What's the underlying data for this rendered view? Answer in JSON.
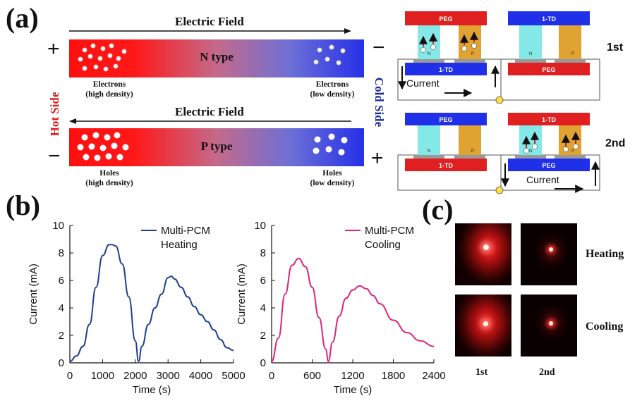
{
  "panels": {
    "a": "(a)",
    "b": "(b)",
    "c": "(c)"
  },
  "panel_a": {
    "n_bar": {
      "field_label": "Electric Field",
      "type_label": "N type",
      "left_sign": "+",
      "right_sign": "−",
      "left_carriers": [
        "Electrons",
        "(high density)"
      ],
      "right_carriers": [
        "Electrons",
        "(low density)"
      ]
    },
    "p_bar": {
      "field_label": "Electric Field",
      "type_label": "P type",
      "left_sign": "−",
      "right_sign": "+",
      "left_carriers": [
        "Holes",
        "(high density)"
      ],
      "right_carriers": [
        "Holes",
        "(low density)"
      ]
    },
    "hot_side": "Hot Side",
    "cold_side": "Cold Side",
    "colors": {
      "hot": "#ee1111",
      "cold": "#2233cc",
      "hot_text": "#e01a1a",
      "cold_text": "#1a2a9a"
    },
    "devices": {
      "rounds": [
        "1st",
        "2nd"
      ],
      "peg": "PEG",
      "td": "1-TD",
      "n": "N",
      "p": "P",
      "current": "Current",
      "electron_sign": "-",
      "hole_sign": "+"
    }
  },
  "chart_data": [
    {
      "type": "line",
      "title": "",
      "xlabel": "Time (s)",
      "ylabel": "Current (mA)",
      "xlim": [
        0,
        5000
      ],
      "ylim": [
        0,
        10
      ],
      "xticks": [
        0,
        1000,
        2000,
        3000,
        4000,
        5000
      ],
      "yticks": [
        0,
        2,
        4,
        6,
        8,
        10
      ],
      "legend": "top-right",
      "series": [
        {
          "name": "Multi-PCM Heating",
          "legend_lines": [
            "Multi-PCM",
            "Heating"
          ],
          "color": "#1f3f8f",
          "x": [
            0,
            200,
            400,
            600,
            800,
            1000,
            1200,
            1300,
            1400,
            1600,
            1800,
            2000,
            2100,
            2200,
            2400,
            2600,
            2800,
            3000,
            3100,
            3200,
            3400,
            3600,
            3800,
            4000,
            4200,
            4400,
            4600,
            4800,
            5000
          ],
          "y": [
            0.1,
            0.5,
            1.2,
            2.8,
            5.5,
            7.8,
            8.6,
            8.6,
            8.5,
            7.2,
            4.8,
            1.6,
            0.1,
            1.2,
            2.8,
            4.0,
            5.0,
            6.2,
            6.3,
            6.1,
            5.5,
            4.8,
            4.1,
            3.5,
            3.0,
            2.4,
            1.7,
            1.1,
            0.9
          ]
        }
      ]
    },
    {
      "type": "line",
      "title": "",
      "xlabel": "Time (s)",
      "ylabel": "Current (mA)",
      "xlim": [
        0,
        2400
      ],
      "ylim": [
        0,
        10
      ],
      "xticks": [
        0,
        600,
        1200,
        1800,
        2400
      ],
      "yticks": [
        0,
        2,
        4,
        6,
        8,
        10
      ],
      "legend": "top-right",
      "series": [
        {
          "name": "Multi-PCM Cooling",
          "legend_lines": [
            "Multi-PCM",
            "Cooling"
          ],
          "color": "#e0257a",
          "x": [
            0,
            100,
            200,
            300,
            400,
            500,
            600,
            700,
            800,
            840,
            900,
            1000,
            1100,
            1200,
            1300,
            1400,
            1500,
            1600,
            1800,
            2000,
            2200,
            2400
          ],
          "y": [
            0.1,
            1.8,
            5.0,
            7.1,
            7.6,
            7.0,
            5.5,
            3.3,
            1.0,
            0.1,
            1.5,
            3.4,
            4.7,
            5.3,
            5.6,
            5.4,
            4.9,
            4.3,
            3.1,
            2.2,
            1.6,
            1.2
          ]
        }
      ]
    }
  ],
  "panel_c": {
    "rows": [
      "Heating",
      "Cooling"
    ],
    "cols": [
      "1st",
      "2nd"
    ]
  }
}
